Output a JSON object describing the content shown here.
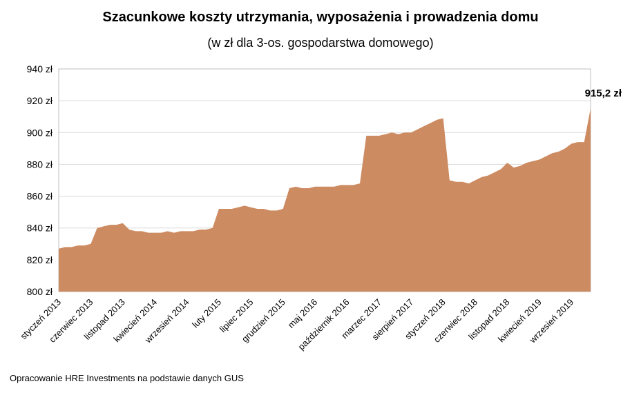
{
  "chart_data": {
    "type": "area",
    "title": "Szacunkowe koszty utrzymania, wyposażenia i prowadzenia domu",
    "subtitle": "(w zł dla 3-os. gospodarstwa domowego)",
    "source_note": "Opracowanie HRE Investments na podstawie danych GUS",
    "unit": "zł",
    "ylim": [
      800,
      940
    ],
    "grid": "horizontal",
    "legend": "none",
    "y_ticks": [
      {
        "value": 800,
        "label": "800 zł"
      },
      {
        "value": 820,
        "label": "820 zł"
      },
      {
        "value": 840,
        "label": "840 zł"
      },
      {
        "value": 860,
        "label": "860 zł"
      },
      {
        "value": 880,
        "label": "880 zł"
      },
      {
        "value": 900,
        "label": "900 zł"
      },
      {
        "value": 920,
        "label": "920 zł"
      },
      {
        "value": 940,
        "label": "940 zł"
      }
    ],
    "x_ticks": [
      {
        "index": 0,
        "label": "styczeń 2013"
      },
      {
        "index": 5,
        "label": "czerwiec 2013"
      },
      {
        "index": 10,
        "label": "listopad 2013"
      },
      {
        "index": 15,
        "label": "kwiecień 2014"
      },
      {
        "index": 20,
        "label": "wrzesień 2014"
      },
      {
        "index": 25,
        "label": "luty 2015"
      },
      {
        "index": 30,
        "label": "lipiec 2015"
      },
      {
        "index": 35,
        "label": "grudzień 2015"
      },
      {
        "index": 40,
        "label": "maj 2016"
      },
      {
        "index": 45,
        "label": "październik 2016"
      },
      {
        "index": 50,
        "label": "marzec 2017"
      },
      {
        "index": 55,
        "label": "sierpień 2017"
      },
      {
        "index": 60,
        "label": "styczeń 2018"
      },
      {
        "index": 65,
        "label": "czerwiec 2018"
      },
      {
        "index": 70,
        "label": "listopad 2018"
      },
      {
        "index": 75,
        "label": "kwiecień 2019"
      },
      {
        "index": 80,
        "label": "wrzesień 2019"
      }
    ],
    "values": [
      827,
      828,
      828,
      829,
      829,
      830,
      840,
      841,
      842,
      842,
      843,
      839,
      838,
      838,
      837,
      837,
      837,
      838,
      837,
      838,
      838,
      838,
      839,
      839,
      840,
      852,
      852,
      852,
      853,
      854,
      853,
      852,
      852,
      851,
      851,
      852,
      865,
      866,
      865,
      865,
      866,
      866,
      866,
      866,
      867,
      867,
      867,
      868,
      898,
      898,
      898,
      899,
      900,
      899,
      900,
      900,
      902,
      904,
      906,
      908,
      909,
      870,
      869,
      869,
      868,
      870,
      872,
      873,
      875,
      877,
      881,
      878,
      879,
      881,
      882,
      883,
      885,
      887,
      888,
      890,
      893,
      894,
      894,
      915.2
    ],
    "last_point_label": "915,2 zł",
    "colors": {
      "area_fill": "#cd8b62",
      "gridline": "#d9d9d9",
      "plot_border": "#bfbfbf",
      "text": "#000000"
    }
  }
}
